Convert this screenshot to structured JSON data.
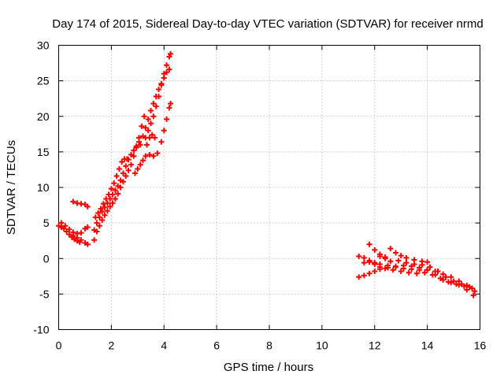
{
  "chart_data": {
    "type": "scatter",
    "title": "Day 174 of 2015, Sidereal Day-to-day VTEC variation (SDTVAR) for receiver nrmd",
    "xlabel": "GPS time / hours",
    "ylabel": "SDTVAR / TECUs",
    "xlim": [
      0,
      16
    ],
    "ylim": [
      -10,
      30
    ],
    "xticks": [
      "0",
      "2",
      "4",
      "6",
      "8",
      "10",
      "12",
      "14",
      "16"
    ],
    "yticks": [
      "-10",
      "-5",
      "0",
      "5",
      "10",
      "15",
      "20",
      "25",
      "30"
    ],
    "grid": true,
    "marker": "+",
    "color": "#ff0000",
    "series": [
      {
        "points": [
          [
            0.0,
            4.6
          ],
          [
            0.1,
            4.4
          ],
          [
            0.2,
            4.2
          ],
          [
            0.3,
            3.8
          ],
          [
            0.4,
            3.4
          ],
          [
            0.55,
            3.2
          ],
          [
            0.7,
            2.9
          ],
          [
            0.85,
            2.6
          ],
          [
            1.0,
            2.2
          ],
          [
            1.1,
            2.0
          ],
          [
            0.1,
            5.0
          ],
          [
            0.25,
            4.6
          ],
          [
            0.4,
            4.1
          ],
          [
            0.55,
            3.7
          ],
          [
            0.7,
            3.5
          ],
          [
            0.85,
            3.6
          ],
          [
            1.0,
            4.2
          ],
          [
            1.1,
            4.4
          ],
          [
            0.5,
            3.0
          ],
          [
            0.6,
            2.7
          ],
          [
            0.7,
            2.5
          ],
          [
            0.8,
            2.3
          ],
          [
            0.55,
            8.0
          ],
          [
            0.7,
            7.8
          ],
          [
            0.85,
            7.7
          ],
          [
            1.0,
            7.6
          ],
          [
            1.1,
            7.3
          ]
        ]
      },
      {
        "points": [
          [
            1.35,
            2.6
          ],
          [
            1.45,
            3.8
          ],
          [
            1.55,
            4.6
          ],
          [
            1.65,
            5.4
          ],
          [
            1.75,
            6.1
          ],
          [
            1.85,
            6.7
          ],
          [
            1.95,
            7.3
          ],
          [
            2.05,
            7.8
          ],
          [
            2.15,
            8.4
          ],
          [
            2.25,
            9.1
          ],
          [
            2.35,
            10.0
          ],
          [
            2.45,
            10.8
          ],
          [
            2.55,
            11.6
          ],
          [
            2.65,
            12.4
          ],
          [
            2.75,
            13.2
          ],
          [
            2.85,
            14.4
          ],
          [
            2.95,
            15.6
          ],
          [
            3.05,
            17.0
          ],
          [
            3.15,
            18.6
          ],
          [
            3.25,
            20.0
          ],
          [
            1.35,
            4.0
          ],
          [
            1.45,
            5.0
          ],
          [
            1.55,
            5.8
          ],
          [
            1.65,
            6.6
          ],
          [
            1.75,
            7.2
          ],
          [
            1.85,
            7.8
          ],
          [
            1.95,
            8.4
          ],
          [
            2.05,
            9.0
          ],
          [
            2.15,
            9.6
          ],
          [
            2.25,
            10.2
          ],
          [
            2.35,
            11.0
          ],
          [
            2.45,
            12.0
          ],
          [
            2.55,
            13.0
          ],
          [
            2.65,
            13.9
          ],
          [
            2.75,
            14.6
          ],
          [
            2.85,
            15.2
          ],
          [
            2.95,
            15.8
          ],
          [
            3.05,
            16.4
          ],
          [
            1.4,
            5.8
          ],
          [
            1.5,
            6.4
          ],
          [
            1.6,
            7.0
          ],
          [
            1.7,
            7.7
          ],
          [
            1.8,
            8.4
          ],
          [
            1.9,
            9.0
          ],
          [
            2.0,
            9.8
          ],
          [
            2.1,
            10.6
          ],
          [
            2.2,
            11.6
          ],
          [
            2.3,
            12.6
          ],
          [
            2.4,
            13.6
          ],
          [
            2.5,
            14.0
          ],
          [
            2.6,
            14.0
          ]
        ]
      },
      {
        "points": [
          [
            2.9,
            12.0
          ],
          [
            3.0,
            12.6
          ],
          [
            3.1,
            13.2
          ],
          [
            3.2,
            13.8
          ],
          [
            3.3,
            14.4
          ],
          [
            3.45,
            14.6
          ],
          [
            3.6,
            14.4
          ],
          [
            3.75,
            14.8
          ],
          [
            3.9,
            16.4
          ],
          [
            4.0,
            18.0
          ],
          [
            4.1,
            19.6
          ],
          [
            4.2,
            21.2
          ],
          [
            4.25,
            21.8
          ],
          [
            3.1,
            16.0
          ],
          [
            3.2,
            17.2
          ],
          [
            3.3,
            18.4
          ],
          [
            3.4,
            19.6
          ],
          [
            3.5,
            20.8
          ],
          [
            3.6,
            21.8
          ],
          [
            3.7,
            22.8
          ],
          [
            3.8,
            23.8
          ],
          [
            3.9,
            24.6
          ],
          [
            4.0,
            25.4
          ],
          [
            4.1,
            26.2
          ],
          [
            4.2,
            26.6
          ],
          [
            3.3,
            17.0
          ],
          [
            3.4,
            18.0
          ],
          [
            3.5,
            19.0
          ],
          [
            3.6,
            20.0
          ],
          [
            3.7,
            21.4
          ],
          [
            3.8,
            22.8
          ],
          [
            3.9,
            24.4
          ],
          [
            4.0,
            26.0
          ],
          [
            4.1,
            27.2
          ],
          [
            4.2,
            28.4
          ],
          [
            4.25,
            28.8
          ],
          [
            3.35,
            16.0
          ],
          [
            3.45,
            17.0
          ],
          [
            3.55,
            17.4
          ],
          [
            3.65,
            17.0
          ]
        ]
      },
      {
        "points": [
          [
            11.4,
            0.3
          ],
          [
            11.6,
            0.1
          ],
          [
            11.8,
            -0.3
          ],
          [
            12.0,
            -0.6
          ],
          [
            12.2,
            -0.8
          ],
          [
            12.5,
            -1.0
          ],
          [
            12.8,
            -1.2
          ],
          [
            13.1,
            -1.4
          ],
          [
            13.4,
            -1.5
          ],
          [
            13.7,
            -1.6
          ],
          [
            14.0,
            -1.6
          ],
          [
            14.3,
            -1.8
          ],
          [
            14.6,
            -2.2
          ],
          [
            14.9,
            -2.6
          ],
          [
            15.2,
            -3.2
          ],
          [
            15.5,
            -3.8
          ],
          [
            15.8,
            -4.6
          ],
          [
            11.4,
            -2.6
          ],
          [
            11.6,
            -2.4
          ],
          [
            11.8,
            -2.1
          ],
          [
            12.0,
            -1.8
          ],
          [
            12.2,
            -1.5
          ],
          [
            12.5,
            -1.3
          ],
          [
            12.8,
            -1.1
          ],
          [
            13.1,
            -1.0
          ],
          [
            13.4,
            -1.1
          ],
          [
            13.7,
            -1.3
          ],
          [
            14.0,
            -1.6
          ],
          [
            14.3,
            -2.3
          ],
          [
            14.6,
            -3.0
          ],
          [
            14.9,
            -3.4
          ],
          [
            15.2,
            -3.7
          ],
          [
            15.5,
            -4.4
          ],
          [
            15.75,
            -5.2
          ],
          [
            11.8,
            2.0
          ],
          [
            12.0,
            1.2
          ],
          [
            12.2,
            0.6
          ],
          [
            12.4,
            0.0
          ],
          [
            12.6,
            -0.4
          ],
          [
            12.9,
            -0.3
          ],
          [
            13.2,
            -0.6
          ],
          [
            13.5,
            -0.8
          ],
          [
            13.8,
            -0.9
          ],
          [
            14.1,
            -1.2
          ],
          [
            14.4,
            -1.8
          ],
          [
            14.7,
            -2.6
          ],
          [
            15.0,
            -3.2
          ],
          [
            15.3,
            -3.6
          ],
          [
            15.6,
            -4.0
          ],
          [
            12.2,
            0.3
          ],
          [
            12.4,
            0.2
          ],
          [
            12.6,
            1.4
          ],
          [
            12.8,
            0.8
          ],
          [
            13.0,
            0.4
          ],
          [
            13.2,
            0.1
          ],
          [
            13.5,
            -0.2
          ],
          [
            13.8,
            -0.4
          ],
          [
            14.0,
            -0.5
          ],
          [
            11.6,
            -0.6
          ],
          [
            11.8,
            -0.5
          ],
          [
            12.0,
            -0.8
          ],
          [
            12.2,
            -1.2
          ],
          [
            12.4,
            -1.4
          ],
          [
            12.7,
            -1.6
          ],
          [
            13.0,
            -1.8
          ],
          [
            13.3,
            -2.0
          ],
          [
            13.6,
            -2.1
          ],
          [
            13.9,
            -2.0
          ],
          [
            14.2,
            -2.3
          ],
          [
            14.5,
            -2.8
          ],
          [
            14.8,
            -3.3
          ],
          [
            15.1,
            -3.6
          ],
          [
            15.4,
            -3.9
          ],
          [
            15.7,
            -4.2
          ]
        ]
      }
    ]
  }
}
